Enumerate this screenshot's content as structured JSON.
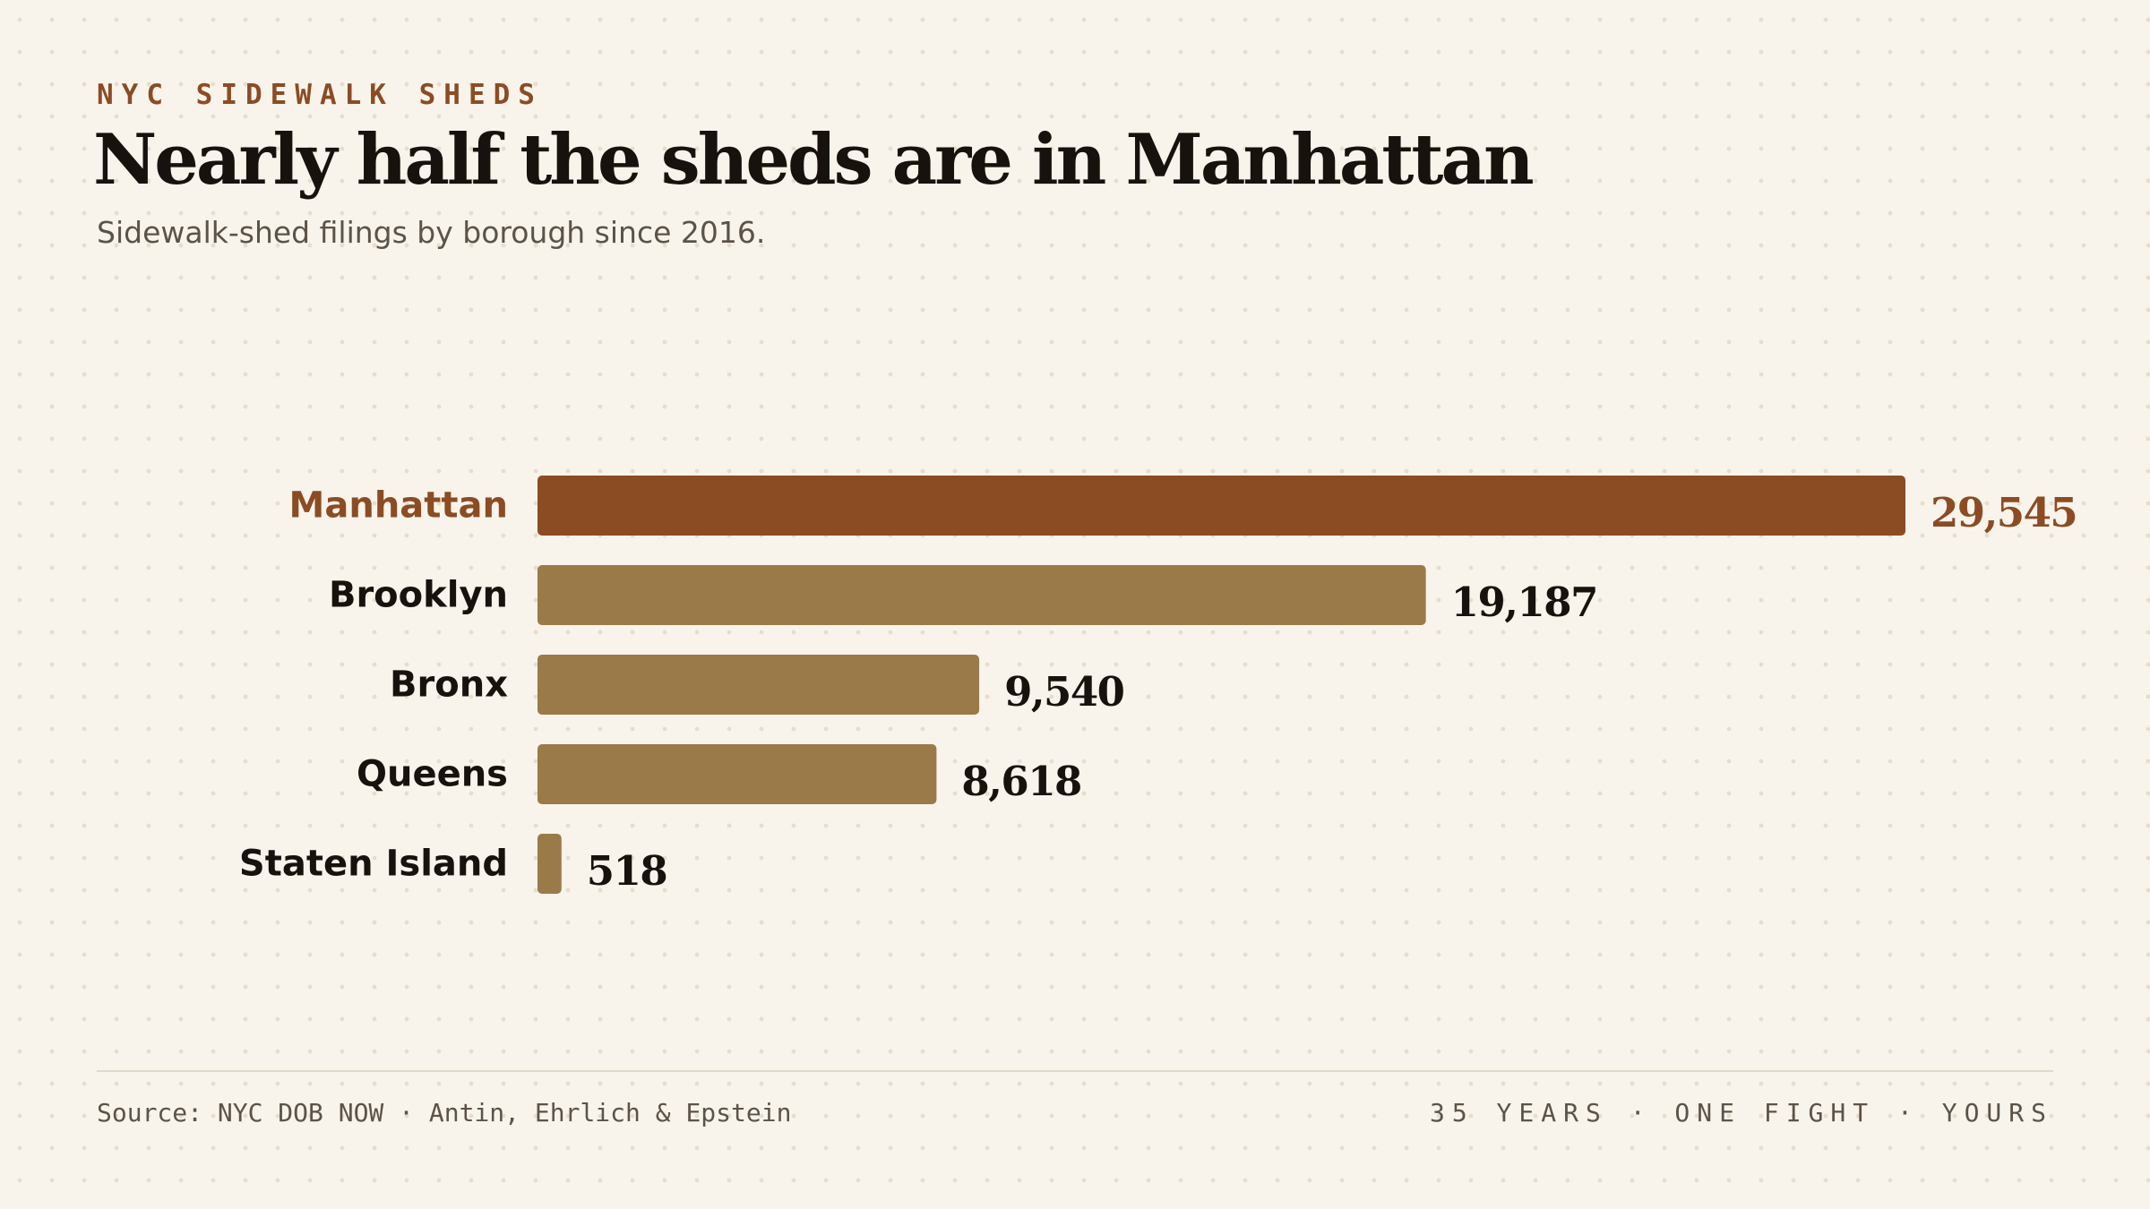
{
  "header": {
    "kicker": "NYC SIDEWALK SHEDS",
    "title": "Nearly half the sheds are in Manhattan",
    "subtitle": "Sidewalk-shed filings by borough since 2016."
  },
  "chart_data": {
    "type": "bar",
    "orientation": "horizontal",
    "title": "Nearly half the sheds are in Manhattan",
    "subtitle": "Sidewalk-shed filings by borough since 2016.",
    "categories": [
      "Manhattan",
      "Brooklyn",
      "Bronx",
      "Queens",
      "Staten Island"
    ],
    "values": [
      29545,
      19187,
      9540,
      8618,
      518
    ],
    "value_labels": [
      "29,545",
      "19,187",
      "9,540",
      "8,618",
      "518"
    ],
    "highlight": "Manhattan",
    "xlim": [
      0,
      29545
    ],
    "grid": false,
    "legend": "none",
    "xlabel": "",
    "ylabel": ""
  },
  "colors": {
    "highlight": "#8b4c24",
    "bar": "#9b7a49",
    "text": "#17120d",
    "muted": "#5c5348",
    "background": "#f8f4ec"
  },
  "footer": {
    "source": "Source: NYC DOB NOW · Antin, Ehrlich & Epstein",
    "tagline": "35 YEARS · ONE FIGHT · YOURS"
  }
}
